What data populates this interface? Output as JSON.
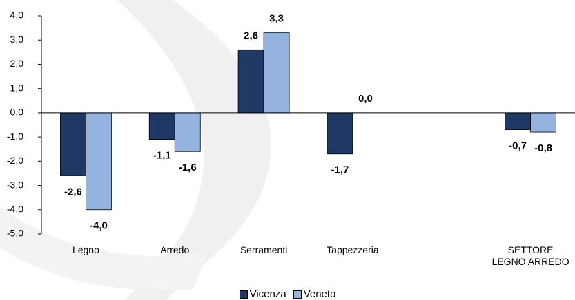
{
  "chart_data": {
    "type": "bar",
    "categories": [
      "Legno",
      "Arredo",
      "Serramenti",
      "Tappezzeria",
      null,
      "SETTORE\nLEGNO ARREDO"
    ],
    "series": [
      {
        "name": "Vicenza",
        "color": "#1f3864",
        "values": [
          -2.6,
          -1.1,
          2.6,
          -1.7,
          null,
          -0.7
        ],
        "value_labels": [
          "-2,6",
          "-1,1",
          "2,6",
          "-1,7",
          null,
          "-0,7"
        ]
      },
      {
        "name": "Veneto",
        "color": "#95b3e1",
        "values": [
          -4.0,
          -1.6,
          3.3,
          0.0,
          null,
          -0.8
        ],
        "value_labels": [
          "-4,0",
          "-1,6",
          "3,3",
          "0,0",
          null,
          "-0,8"
        ]
      }
    ],
    "ylim": [
      -5,
      4
    ],
    "yticks": [
      {
        "value": -5,
        "label": "-5,0"
      },
      {
        "value": -4,
        "label": "-4,0"
      },
      {
        "value": -3,
        "label": "-3,0"
      },
      {
        "value": -2,
        "label": "-2,0"
      },
      {
        "value": -1,
        "label": "-1,0"
      },
      {
        "value": 0,
        "label": "0,0"
      },
      {
        "value": 1,
        "label": "1,0"
      },
      {
        "value": 2,
        "label": "2,0"
      },
      {
        "value": 3,
        "label": "3,0"
      },
      {
        "value": 4,
        "label": "4,0"
      }
    ],
    "legend": "bottom"
  }
}
